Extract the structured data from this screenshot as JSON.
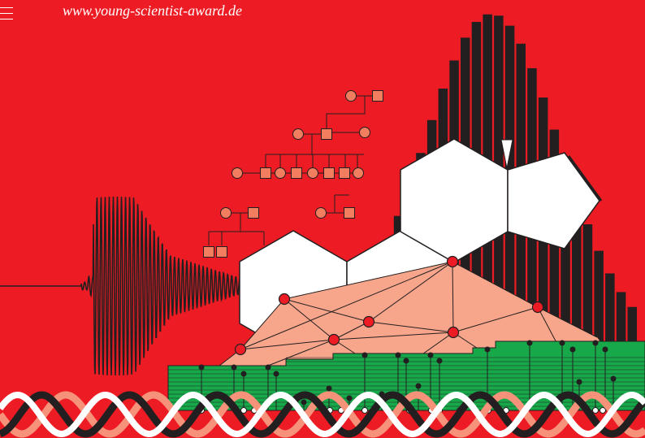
{
  "header": {
    "url": "www.young-scientist-award.de"
  },
  "icons": {
    "menu": "menu-icon"
  },
  "colors": {
    "background": "#ED1C24",
    "dark": "#231F20",
    "salmon": "#F7A58B",
    "pedigree": "#F37E5F",
    "node": "#ED1C24",
    "green": "#17A84A",
    "white": "#FFFFFF",
    "helix_light": "#F7927A"
  }
}
